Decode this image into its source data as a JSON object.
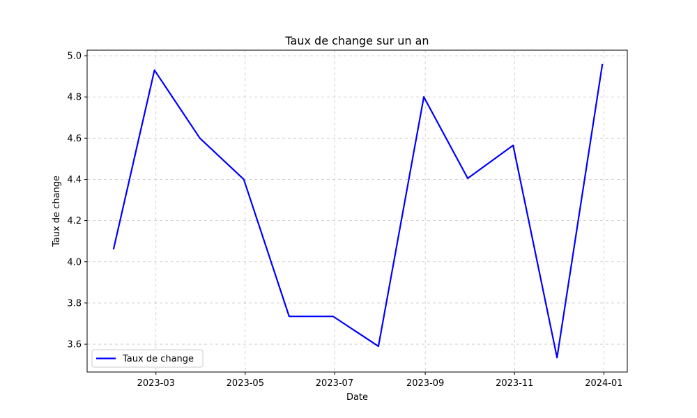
{
  "chart_data": {
    "type": "line",
    "title": "Taux de change sur un an",
    "xlabel": "Date",
    "ylabel": "Taux de change",
    "x": [
      "2023-01-31",
      "2023-02-28",
      "2023-03-31",
      "2023-04-30",
      "2023-05-31",
      "2023-06-30",
      "2023-07-31",
      "2023-08-31",
      "2023-09-30",
      "2023-10-31",
      "2023-11-30",
      "2023-12-31"
    ],
    "series": [
      {
        "name": "Taux de change",
        "color": "#0000ff",
        "values": [
          4.06,
          4.93,
          4.6,
          4.4,
          3.735,
          3.735,
          3.59,
          4.8,
          4.405,
          4.565,
          3.535,
          4.96
        ]
      }
    ],
    "xticks": [
      "2023-03-01",
      "2023-05-01",
      "2023-07-01",
      "2023-09-01",
      "2023-11-01",
      "2024-01-01"
    ],
    "xtick_labels": [
      "2023-03",
      "2023-05",
      "2023-07",
      "2023-09",
      "2023-11",
      "2024-01"
    ],
    "yticks": [
      3.6,
      3.8,
      4.0,
      4.2,
      4.4,
      4.6,
      4.8,
      5.0
    ],
    "ytick_labels": [
      "3.6",
      "3.8",
      "4.0",
      "4.2",
      "4.4",
      "4.6",
      "4.8",
      "5.0"
    ],
    "xlim": [
      "2023-01-13",
      "2024-01-17"
    ],
    "ylim": [
      3.465,
      5.027
    ],
    "grid": true,
    "legend_position": "lower-left"
  }
}
